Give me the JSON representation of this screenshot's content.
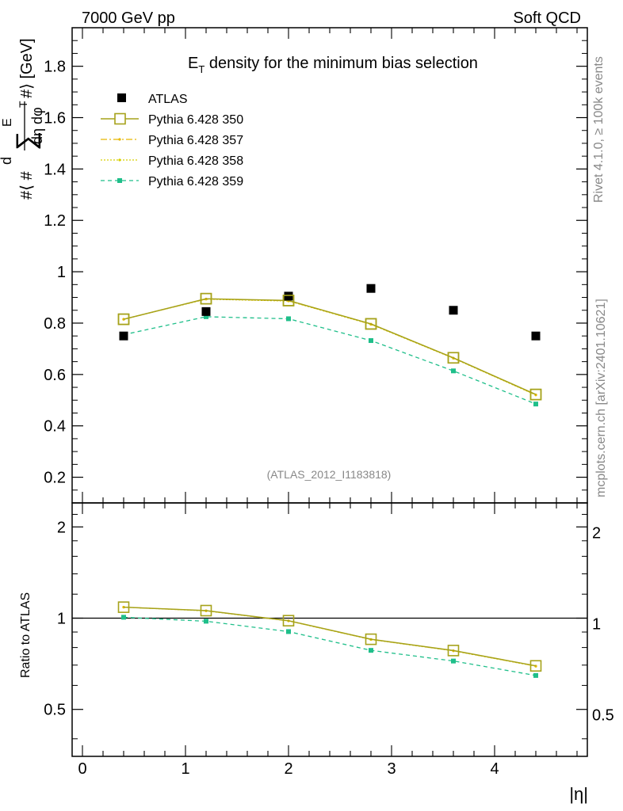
{
  "header": {
    "left": "7000 GeV pp",
    "right": "Soft QCD"
  },
  "side_labels": {
    "rivet": "Rivet 4.1.0, ≥ 100k events",
    "mcplots": "mcplots.cern.ch [arXiv:2401.10621]"
  },
  "watermark": "(ATLAS_2012_I1183818)",
  "chart_data": {
    "type": "line",
    "title_main": "E",
    "title_sub": "T",
    "title_rest": " density  for the minimum bias selection",
    "xlabel": "|η|",
    "ylabel": "#⟨ #  d ∑ E_T / dη dφ #⟩ [GeV]",
    "ylabel_parts": {
      "hash_open": "#⟨ #",
      "d": "d",
      "sum": "∑",
      "e": "E",
      "t": "T",
      "den": "dη dφ",
      "hash_close": "#⟩ [GeV]"
    },
    "ratio_ylabel": "Ratio to ATLAS",
    "xlim": [
      -0.1,
      4.9
    ],
    "ylim": [
      0.1,
      1.95
    ],
    "ratio_ylim": [
      0.35,
      2.4
    ],
    "x_ticks": [
      "0",
      "1",
      "2",
      "3",
      "4"
    ],
    "y_ticks": [
      "0.2",
      "0.4",
      "0.6",
      "0.8",
      "1",
      "1.2",
      "1.4",
      "1.6",
      "1.8"
    ],
    "ratio_ticks": [
      "0.5",
      "1",
      "2"
    ],
    "x": [
      0.4,
      1.2,
      2.0,
      2.8,
      3.6,
      4.4
    ],
    "data": {
      "name": "ATLAS",
      "values": [
        0.75,
        0.845,
        0.905,
        0.935,
        0.85,
        0.75
      ]
    },
    "series": [
      {
        "name": "Pythia 6.428 350",
        "color": "#a6a21a",
        "values": [
          0.815,
          0.895,
          0.888,
          0.797,
          0.665,
          0.522
        ],
        "ratio": [
          1.087,
          1.059,
          0.981,
          0.852,
          0.782,
          0.696
        ]
      },
      {
        "name": "Pythia 6.428 357",
        "color": "#e8b800",
        "values": [
          0.815,
          0.894,
          0.887,
          0.796,
          0.664,
          0.521
        ],
        "ratio": [
          1.087,
          1.058,
          0.98,
          0.851,
          0.781,
          0.695
        ]
      },
      {
        "name": "Pythia 6.428 358",
        "color": "#d8d000",
        "values": [
          0.815,
          0.893,
          0.886,
          0.795,
          0.663,
          0.52
        ],
        "ratio": [
          1.087,
          1.057,
          0.979,
          0.85,
          0.78,
          0.694
        ]
      },
      {
        "name": "Pythia 6.428 359",
        "color": "#1fbf8a",
        "values": [
          0.755,
          0.825,
          0.817,
          0.732,
          0.614,
          0.485
        ],
        "ratio": [
          1.007,
          0.977,
          0.903,
          0.783,
          0.722,
          0.647
        ]
      }
    ]
  }
}
